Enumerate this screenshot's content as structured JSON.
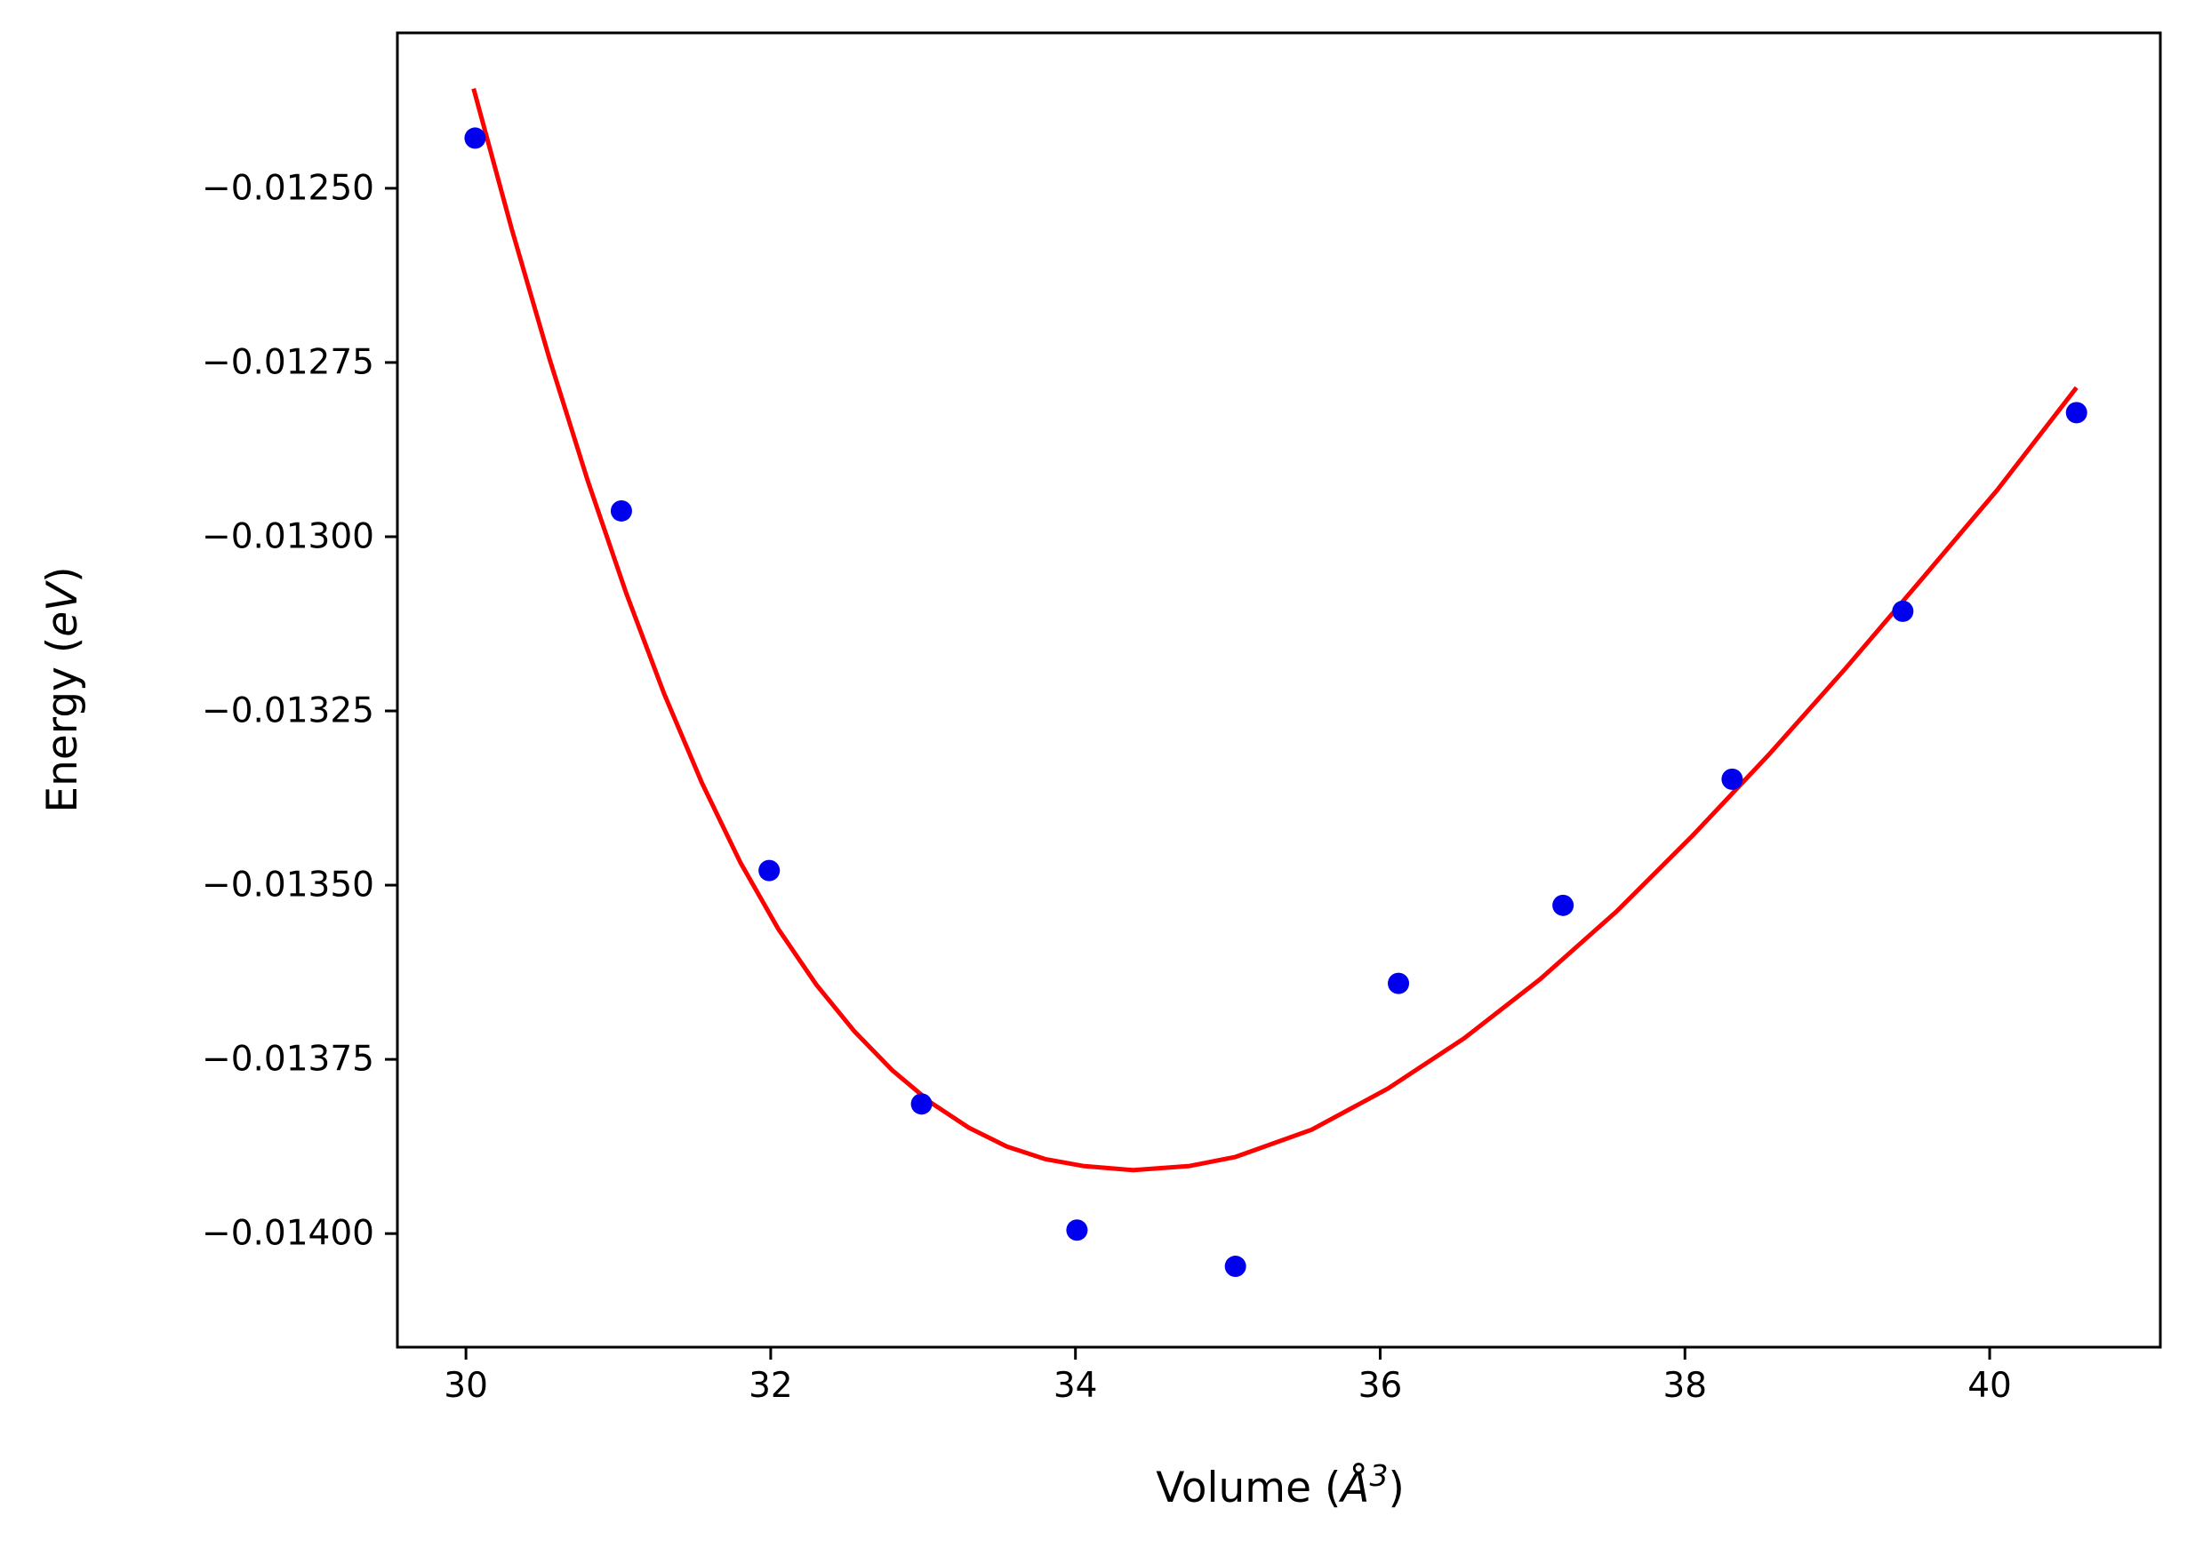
{
  "chart_data": {
    "type": "scatter",
    "title": "",
    "xlabel": "Volume (",
    "xlabel_unit": "Å",
    "xlabel_sup": "3",
    "xlabel_end": ")",
    "ylabel": "Energy (",
    "ylabel_unit": "eV",
    "ylabel_end": ")",
    "xlim": [
      29.55,
      41.12
    ],
    "ylim": [
      -0.014163,
      -0.012277
    ],
    "xticks": [
      30,
      32,
      34,
      36,
      38,
      40
    ],
    "xtick_labels": [
      "30",
      "32",
      "34",
      "36",
      "38",
      "40"
    ],
    "yticks": [
      -0.0125,
      -0.01275,
      -0.013,
      -0.01325,
      -0.0135,
      -0.01375,
      -0.014
    ],
    "ytick_labels": [
      "−0.01250",
      "−0.01275",
      "−0.01300",
      "−0.01325",
      "−0.01350",
      "−0.01375",
      "−0.01400"
    ],
    "grid": false,
    "series": [
      {
        "kind": "scatter",
        "color": "#0000ee",
        "x": [
          30.06,
          31.02,
          31.99,
          32.99,
          34.01,
          35.05,
          36.12,
          37.2,
          38.31,
          39.43,
          40.57
        ],
        "y": [
          -0.012428,
          -0.012963,
          -0.013479,
          -0.013814,
          -0.013995,
          -0.014047,
          -0.013641,
          -0.013529,
          -0.013348,
          -0.013107,
          -0.012822
        ]
      },
      {
        "kind": "line",
        "color": "#ff0000",
        "x": [
          30.05,
          30.3,
          30.55,
          30.8,
          31.05,
          31.3,
          31.55,
          31.8,
          32.05,
          32.3,
          32.55,
          32.8,
          33.05,
          33.3,
          33.55,
          33.8,
          34.05,
          34.38,
          34.75,
          35.05,
          35.55,
          36.05,
          36.55,
          37.05,
          37.55,
          38.05,
          38.55,
          39.05,
          39.55,
          40.05,
          40.57
        ],
        "y": [
          -0.012357,
          -0.012558,
          -0.012746,
          -0.01292,
          -0.01308,
          -0.013225,
          -0.013354,
          -0.013467,
          -0.013563,
          -0.013643,
          -0.01371,
          -0.013766,
          -0.013812,
          -0.013848,
          -0.013875,
          -0.013893,
          -0.013903,
          -0.013909,
          -0.013903,
          -0.01389,
          -0.013851,
          -0.013792,
          -0.01372,
          -0.013635,
          -0.013538,
          -0.013429,
          -0.013313,
          -0.01319,
          -0.013062,
          -0.012933,
          -0.012786
        ]
      }
    ]
  }
}
